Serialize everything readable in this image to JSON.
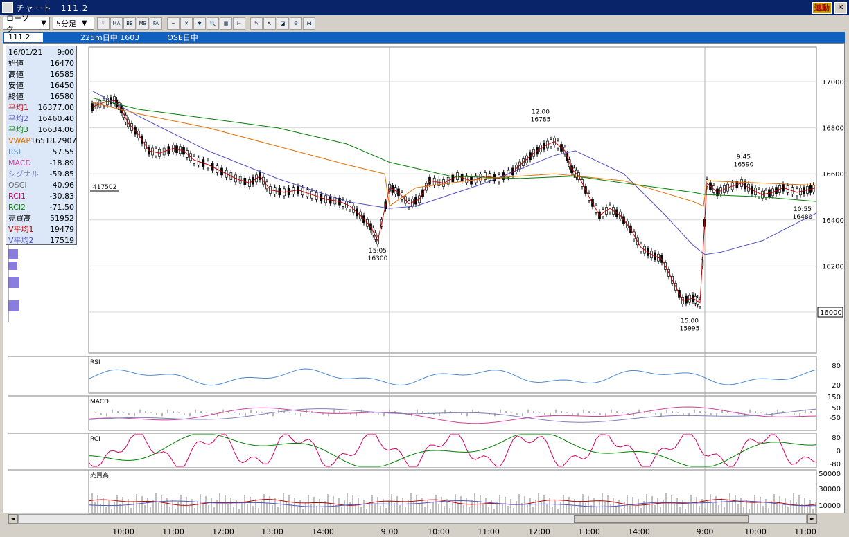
{
  "window": {
    "title": "チャート　111.2",
    "link_label": "連動",
    "close_label": "✕"
  },
  "toolbar": {
    "chart_type": "ローソク",
    "interval": "5分足",
    "icons": [
      {
        "name": "candle-settings-icon",
        "label": "⎍"
      },
      {
        "name": "ma-icon",
        "label": "MA"
      },
      {
        "name": "bb-icon",
        "label": "BB"
      },
      {
        "name": "mbe-icon",
        "label": "MB"
      },
      {
        "name": "fa-icon",
        "label": "FA"
      },
      {
        "name": "line-chart-icon",
        "label": "~"
      },
      {
        "name": "crosshair-icon",
        "label": "✕"
      },
      {
        "name": "star-icon",
        "label": "✱"
      },
      {
        "name": "zoom-icon",
        "label": "🔍"
      },
      {
        "name": "calculator-icon",
        "label": "▦"
      },
      {
        "name": "split-icon",
        "label": "⊢"
      },
      {
        "name": "pen-icon",
        "label": "✎"
      },
      {
        "name": "cursor-icon",
        "label": "↖"
      },
      {
        "name": "eraser-icon",
        "label": "◪"
      },
      {
        "name": "settings-icon",
        "label": "⚙"
      },
      {
        "name": "fibonacci-icon",
        "label": "⋈"
      }
    ]
  },
  "infobar": {
    "price": "111.2",
    "symbol": "225m日中 1603",
    "exchange": "OSE日中"
  },
  "legend": [
    {
      "k": "16/01/21",
      "v": "9:00",
      "c": "#000"
    },
    {
      "k": "始値",
      "v": "16470",
      "c": "#000"
    },
    {
      "k": "高値",
      "v": "16585",
      "c": "#000"
    },
    {
      "k": "安値",
      "v": "16450",
      "c": "#000"
    },
    {
      "k": "終値",
      "v": "16580",
      "c": "#000"
    },
    {
      "k": "平均1",
      "v": "16377.00",
      "c": "#c00000"
    },
    {
      "k": "平均2",
      "v": "16460.40",
      "c": "#5050c0"
    },
    {
      "k": "平均3",
      "v": "16634.06",
      "c": "#008000"
    },
    {
      "k": "VWAP",
      "v": "16518.2907",
      "c": "#e07000"
    },
    {
      "k": "RSI",
      "v": "57.55",
      "c": "#4a8ad0"
    },
    {
      "k": "MACD",
      "v": "-18.89",
      "c": "#d0409a"
    },
    {
      "k": "シグナル",
      "v": "-59.85",
      "c": "#8080c0"
    },
    {
      "k": "OSCI",
      "v": "40.96",
      "c": "#707070"
    },
    {
      "k": "RCI1",
      "v": "-30.83",
      "c": "#d00060"
    },
    {
      "k": "RCI2",
      "v": "-71.50",
      "c": "#008000"
    },
    {
      "k": "売買高",
      "v": "51952",
      "c": "#000"
    },
    {
      "k": "V平均1",
      "v": "19479",
      "c": "#c00000"
    },
    {
      "k": "V平均2",
      "v": "17519",
      "c": "#5050c0"
    }
  ],
  "price_axis": [
    "17000",
    "16800",
    "16600",
    "16400",
    "16200",
    "16000"
  ],
  "volume_profile_label": "417502",
  "annotations": [
    {
      "t": "15:05",
      "p": "16300"
    },
    {
      "t": "12:00",
      "p": "16785"
    },
    {
      "t": "15:00",
      "p": "15995"
    },
    {
      "t": "9:45",
      "p": "16590"
    },
    {
      "t": "10:55",
      "p": "16480"
    }
  ],
  "sub_panels": {
    "rsi": {
      "label": "RSI",
      "ticks": [
        "80",
        "20"
      ]
    },
    "macd": {
      "label": "MACD",
      "ticks": [
        "150",
        "50",
        "-50"
      ]
    },
    "rci": {
      "label": "RCI",
      "ticks": [
        "80",
        "0",
        "-80"
      ]
    },
    "volume": {
      "label": "売買高",
      "ticks": [
        "50000",
        "30000",
        "10000"
      ]
    }
  },
  "time_axis": [
    "10:00",
    "11:00",
    "12:00",
    "13:00",
    "14:00",
    "9:00",
    "10:00",
    "11:00",
    "12:00",
    "13:00",
    "14:00",
    "9:00",
    "10:00",
    "11:00"
  ],
  "scroll": {
    "left": "◄",
    "right": "►"
  },
  "colors": {
    "ma1": "#c00000",
    "ma2": "#5050c0",
    "ma3": "#008000",
    "vwap": "#e07000",
    "rsi": "#4a8ad0",
    "macd": "#d0409a",
    "signal": "#8080c0",
    "rci1": "#d00060",
    "rci2": "#008000"
  }
}
